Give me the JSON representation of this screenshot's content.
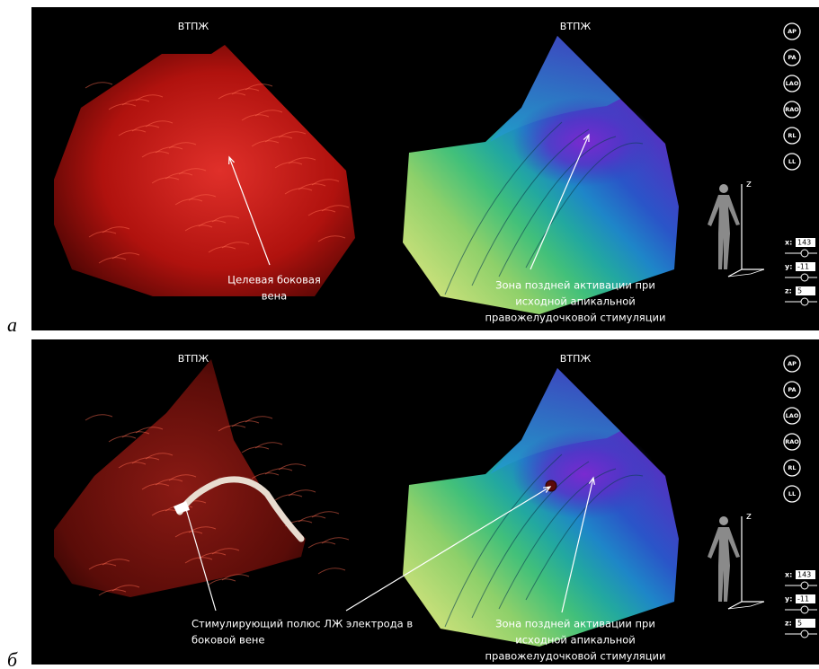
{
  "panels": [
    {
      "label": "а",
      "left_title": "ВТПЖ",
      "right_title": "ВТПЖ",
      "annotations": [
        {
          "lines": [
            "Целевая боковая",
            "вена"
          ]
        },
        {
          "lines": [
            "Зона поздней активации при",
            "исходной апикальной",
            "правожелудочковой стимуляции"
          ]
        }
      ],
      "view_buttons": [
        "AP",
        "PA",
        "LAO",
        "RAO",
        "RL",
        "LL"
      ],
      "axis_label": "z",
      "coords": [
        {
          "axis": "x:",
          "value": "143"
        },
        {
          "axis": "y:",
          "value": "-11"
        },
        {
          "axis": "z:",
          "value": "5"
        }
      ]
    },
    {
      "label": "б",
      "left_title": "ВТПЖ",
      "right_title": "ВТПЖ",
      "annotations": [
        {
          "lines": [
            "Стимулирующий полюс ЛЖ электрода в",
            "боковой вене"
          ]
        },
        {
          "lines": [
            "Зона поздней активации при",
            "исходной апикальной",
            "правожелудочковой стимуляции"
          ]
        }
      ],
      "view_buttons": [
        "AP",
        "PA",
        "LAO",
        "RAO",
        "RL",
        "LL"
      ],
      "axis_label": "z",
      "coords": [
        {
          "axis": "x:",
          "value": "143"
        },
        {
          "axis": "y:",
          "value": "-11"
        },
        {
          "axis": "z:",
          "value": "5"
        }
      ]
    }
  ]
}
